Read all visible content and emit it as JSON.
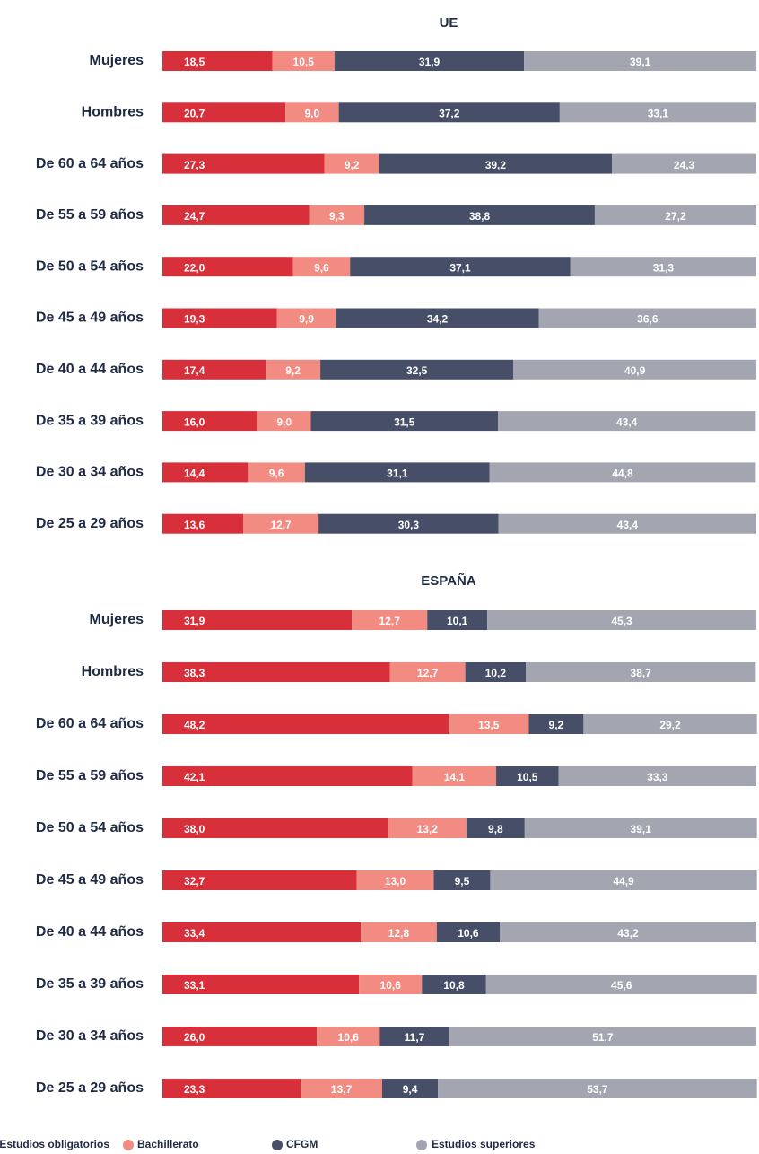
{
  "legend": [
    {
      "name": "Estudios obligatorios",
      "color": "#d7303a"
    },
    {
      "name": "Bachillerato",
      "color": "#f28b82"
    },
    {
      "name": "CFGM",
      "color": "#474f68"
    },
    {
      "name": "Estudios superiores",
      "color": "#a3a6b1"
    }
  ],
  "chart_data": [
    {
      "type": "bar",
      "stacked": true,
      "title": "UE",
      "categories": [
        "Mujeres",
        "Hombres",
        "De 60 a 64 años",
        "De 55 a 59 años",
        "De 50 a 54 años",
        "De 45 a 49 años",
        "De 40 a 44 años",
        "De 35 a 39 años",
        "De 30 a 34 años",
        "De 25 a 29 años"
      ],
      "series": [
        {
          "values": [
            18.5,
            20.7,
            27.3,
            24.7,
            22.0,
            19.3,
            17.4,
            16.0,
            14.4,
            13.6
          ],
          "value_labels": [
            "18,5",
            "20,7",
            "27,3",
            "24,7",
            "22,0",
            "19,3",
            "17,4",
            "16,0",
            "14,4",
            "13,6"
          ]
        },
        {
          "values": [
            10.5,
            9.0,
            9.2,
            9.3,
            9.6,
            9.9,
            9.2,
            9.0,
            9.6,
            12.7
          ],
          "value_labels": [
            "10,5",
            "9,0",
            "9,2",
            "9,3",
            "9,6",
            "9,9",
            "9,2",
            "9,0",
            "9,6",
            "12,7"
          ]
        },
        {
          "values": [
            31.9,
            37.2,
            39.2,
            38.8,
            37.1,
            34.2,
            32.5,
            31.5,
            31.1,
            30.3
          ],
          "value_labels": [
            "31,9",
            "37,2",
            "39,2",
            "38,8",
            "37,1",
            "34,2",
            "32,5",
            "31,5",
            "31,1",
            "30,3"
          ]
        },
        {
          "values": [
            39.1,
            33.1,
            24.3,
            27.2,
            31.3,
            36.6,
            40.9,
            43.4,
            44.8,
            43.4
          ],
          "value_labels": [
            "39,1",
            "33,1",
            "24,3",
            "27,2",
            "31,3",
            "36,6",
            "40,9",
            "43,4",
            "44,8",
            "43,4"
          ]
        }
      ]
    },
    {
      "type": "bar",
      "stacked": true,
      "title": "ESPAÑA",
      "categories": [
        "Mujeres",
        "Hombres",
        "De 60 a 64 años",
        "De 55 a 59 años",
        "De 50 a 54 años",
        "De 45 a 49 años",
        "De 40 a 44 años",
        "De 35 a 39 años",
        "De 30 a 34 años",
        "De 25 a 29 años"
      ],
      "series": [
        {
          "values": [
            31.9,
            38.3,
            48.2,
            42.1,
            38.0,
            32.7,
            33.4,
            33.1,
            26.0,
            23.3
          ],
          "value_labels": [
            "31,9",
            "38,3",
            "48,2",
            "42,1",
            "38,0",
            "32,7",
            "33,4",
            "33,1",
            "26,0",
            "23,3"
          ]
        },
        {
          "values": [
            12.7,
            12.7,
            13.5,
            14.1,
            13.2,
            13.0,
            12.8,
            10.6,
            10.6,
            13.7
          ],
          "value_labels": [
            "12,7",
            "12,7",
            "13,5",
            "14,1",
            "13,2",
            "13,0",
            "12,8",
            "10,6",
            "10,6",
            "13,7"
          ]
        },
        {
          "values": [
            10.1,
            10.2,
            9.2,
            10.5,
            9.8,
            9.5,
            10.6,
            10.8,
            11.7,
            9.4
          ],
          "value_labels": [
            "10,1",
            "10,2",
            "9,2",
            "10,5",
            "9,8",
            "9,5",
            "10,6",
            "10,8",
            "11,7",
            "9,4"
          ]
        },
        {
          "values": [
            45.3,
            38.7,
            29.2,
            33.3,
            39.1,
            44.9,
            43.2,
            45.6,
            51.7,
            53.7
          ],
          "value_labels": [
            "45,3",
            "38,7",
            "29,2",
            "33,3",
            "39,1",
            "44,9",
            "43,2",
            "45,6",
            "51,7",
            "53,7"
          ]
        }
      ]
    }
  ]
}
